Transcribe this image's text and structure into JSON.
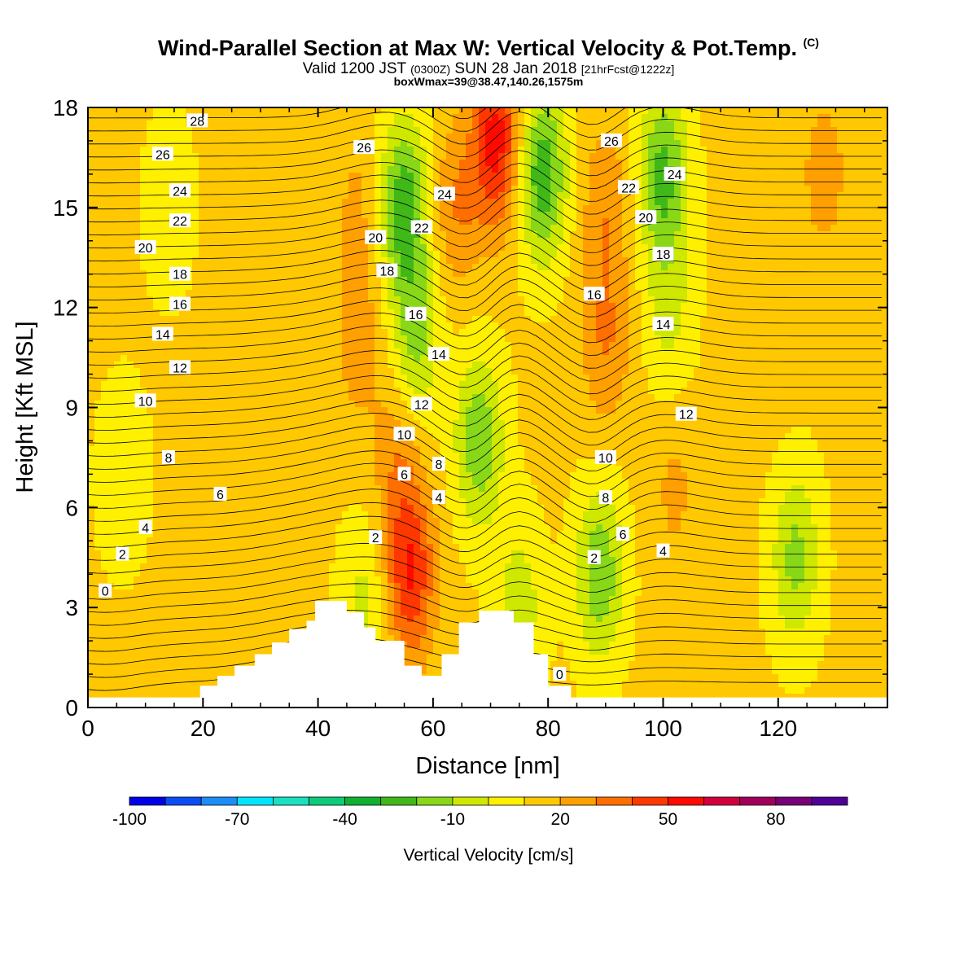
{
  "header": {
    "title": "Wind-Parallel Section at Max W: Vertical Velocity & Pot.Temp.",
    "copyright": "(C)",
    "subtitle_part1": "Valid 1200 JST",
    "subtitle_part2": "(0300Z)",
    "subtitle_part3": "SUN 28 Jan 2018",
    "subtitle_part4": "[21hrFcst@1222z]",
    "subtitle2": "boxWmax=39@38.47,140.26,1575m"
  },
  "chart_data": {
    "type": "heatmap",
    "xlabel": "Distance [nm]",
    "ylabel": "Height [Kft MSL]",
    "xlim": [
      0,
      139
    ],
    "ylim": [
      0,
      18
    ],
    "x_ticks": [
      0,
      20,
      40,
      60,
      80,
      100,
      120
    ],
    "y_ticks": [
      0,
      3,
      6,
      9,
      12,
      15,
      18
    ],
    "colorbar": {
      "label": "Vertical Velocity [cm/s]",
      "tick_labels": [
        "-100",
        "-70",
        "-40",
        "-10",
        "20",
        "50",
        "80"
      ],
      "tick_values": [
        -100,
        -70,
        -40,
        -10,
        20,
        50,
        80
      ],
      "range": [
        -100,
        100
      ],
      "colors": [
        "#0000e6",
        "#0a4cf5",
        "#1c8cf7",
        "#00e5ff",
        "#19e0c0",
        "#0ccc78",
        "#10b030",
        "#40b818",
        "#88d818",
        "#cfe800",
        "#fff000",
        "#ffc800",
        "#ffa000",
        "#ff6e00",
        "#ff3800",
        "#ff0a00",
        "#d2003c",
        "#a0005a",
        "#780078",
        "#500096"
      ]
    },
    "velocity_features": [
      {
        "sign": "down",
        "x": 55,
        "y": 15,
        "peak": -40
      },
      {
        "sign": "down",
        "x": 57,
        "y": 11,
        "peak": -25
      },
      {
        "sign": "down",
        "x": 68,
        "y": 8,
        "peak": -30
      },
      {
        "sign": "down",
        "x": 79,
        "y": 16,
        "peak": -40
      },
      {
        "sign": "down",
        "x": 100,
        "y": 16,
        "peak": -35
      },
      {
        "sign": "down",
        "x": 101,
        "y": 12,
        "peak": -15
      },
      {
        "sign": "down",
        "x": 89,
        "y": 4,
        "peak": -30
      },
      {
        "sign": "down",
        "x": 123,
        "y": 4.5,
        "peak": -25
      },
      {
        "sign": "down",
        "x": 75,
        "y": 3,
        "peak": -18
      },
      {
        "sign": "down",
        "x": 48,
        "y": 3,
        "peak": -15
      },
      {
        "sign": "down",
        "x": 6,
        "y": 7,
        "peak": -12
      },
      {
        "sign": "down",
        "x": 14,
        "y": 15,
        "peak": -10
      },
      {
        "sign": "up",
        "x": 56,
        "y": 4,
        "peak": 50
      },
      {
        "sign": "up",
        "x": 54,
        "y": 7.5,
        "peak": 28
      },
      {
        "sign": "up",
        "x": 47,
        "y": 11,
        "peak": 25
      },
      {
        "sign": "up",
        "x": 47,
        "y": 15,
        "peak": 22
      },
      {
        "sign": "up",
        "x": 71,
        "y": 17,
        "peak": 55
      },
      {
        "sign": "up",
        "x": 64,
        "y": 15,
        "peak": 30
      },
      {
        "sign": "up",
        "x": 90,
        "y": 11,
        "peak": 30
      },
      {
        "sign": "up",
        "x": 90,
        "y": 15,
        "peak": 28
      },
      {
        "sign": "up",
        "x": 102,
        "y": 6.5,
        "peak": 22
      },
      {
        "sign": "up",
        "x": 128,
        "y": 16,
        "peak": 25
      },
      {
        "sign": "up",
        "x": 118,
        "y": 10,
        "peak": 15
      },
      {
        "sign": "up",
        "x": 38,
        "y": 1.5,
        "peak": 12
      },
      {
        "sign": "up",
        "x": 20,
        "y": 2,
        "peak": 10
      }
    ],
    "contour_field": "Potential temperature",
    "contour_levels": [
      0,
      2,
      4,
      6,
      8,
      10,
      12,
      14,
      16,
      18,
      20,
      22,
      24,
      26,
      28
    ],
    "contour_labels": [
      {
        "text": "0",
        "x": 3,
        "y": 3.5
      },
      {
        "text": "2",
        "x": 6,
        "y": 4.6
      },
      {
        "text": "4",
        "x": 10,
        "y": 5.4
      },
      {
        "text": "6",
        "x": 23,
        "y": 6.4
      },
      {
        "text": "8",
        "x": 14,
        "y": 7.5
      },
      {
        "text": "10",
        "x": 10,
        "y": 9.2
      },
      {
        "text": "12",
        "x": 16,
        "y": 10.2
      },
      {
        "text": "14",
        "x": 13,
        "y": 11.2
      },
      {
        "text": "16",
        "x": 16,
        "y": 12.1
      },
      {
        "text": "18",
        "x": 16,
        "y": 13.0
      },
      {
        "text": "20",
        "x": 10,
        "y": 13.8
      },
      {
        "text": "22",
        "x": 16,
        "y": 14.6
      },
      {
        "text": "24",
        "x": 16,
        "y": 15.5
      },
      {
        "text": "26",
        "x": 13,
        "y": 16.6
      },
      {
        "text": "28",
        "x": 19,
        "y": 17.6
      },
      {
        "text": "26",
        "x": 48,
        "y": 16.8
      },
      {
        "text": "24",
        "x": 62,
        "y": 15.4
      },
      {
        "text": "22",
        "x": 58,
        "y": 14.4
      },
      {
        "text": "20",
        "x": 50,
        "y": 14.1
      },
      {
        "text": "18",
        "x": 52,
        "y": 13.1
      },
      {
        "text": "16",
        "x": 57,
        "y": 11.8
      },
      {
        "text": "14",
        "x": 61,
        "y": 10.6
      },
      {
        "text": "12",
        "x": 58,
        "y": 9.1
      },
      {
        "text": "10",
        "x": 55,
        "y": 8.2
      },
      {
        "text": "8",
        "x": 61,
        "y": 7.3
      },
      {
        "text": "6",
        "x": 55,
        "y": 7.0
      },
      {
        "text": "4",
        "x": 61,
        "y": 6.3
      },
      {
        "text": "2",
        "x": 50,
        "y": 5.1
      },
      {
        "text": "26",
        "x": 91,
        "y": 17.0
      },
      {
        "text": "24",
        "x": 102,
        "y": 16.0
      },
      {
        "text": "22",
        "x": 94,
        "y": 15.6
      },
      {
        "text": "20",
        "x": 97,
        "y": 14.7
      },
      {
        "text": "18",
        "x": 100,
        "y": 13.6
      },
      {
        "text": "16",
        "x": 88,
        "y": 12.4
      },
      {
        "text": "14",
        "x": 100,
        "y": 11.5
      },
      {
        "text": "12",
        "x": 104,
        "y": 8.8
      },
      {
        "text": "10",
        "x": 90,
        "y": 7.5
      },
      {
        "text": "8",
        "x": 90,
        "y": 6.3
      },
      {
        "text": "6",
        "x": 93,
        "y": 5.2
      },
      {
        "text": "4",
        "x": 100,
        "y": 4.7
      },
      {
        "text": "2",
        "x": 88,
        "y": 4.5
      },
      {
        "text": "0",
        "x": 82,
        "y": 1.0
      }
    ],
    "terrain": [
      [
        0,
        0.3
      ],
      [
        19.5,
        0.3
      ],
      [
        19.5,
        0.65
      ],
      [
        22.5,
        0.65
      ],
      [
        22.5,
        0.95
      ],
      [
        25.5,
        0.95
      ],
      [
        25.5,
        1.25
      ],
      [
        29,
        1.25
      ],
      [
        29,
        1.6
      ],
      [
        32,
        1.6
      ],
      [
        32,
        1.95
      ],
      [
        35,
        1.95
      ],
      [
        35,
        2.35
      ],
      [
        38,
        2.35
      ],
      [
        38,
        2.6
      ],
      [
        39.5,
        2.6
      ],
      [
        39.5,
        3.2
      ],
      [
        45,
        3.2
      ],
      [
        45,
        2.85
      ],
      [
        48,
        2.85
      ],
      [
        48,
        2.4
      ],
      [
        50,
        2.4
      ],
      [
        50,
        2.0
      ],
      [
        55,
        2.0
      ],
      [
        55,
        1.25
      ],
      [
        58,
        1.25
      ],
      [
        58,
        0.95
      ],
      [
        61.5,
        0.95
      ],
      [
        61.5,
        1.6
      ],
      [
        64.5,
        1.6
      ],
      [
        64.5,
        2.55
      ],
      [
        68,
        2.55
      ],
      [
        68,
        2.9
      ],
      [
        74,
        2.9
      ],
      [
        74,
        2.55
      ],
      [
        77.5,
        2.55
      ],
      [
        77.5,
        1.6
      ],
      [
        80,
        1.6
      ],
      [
        80,
        0.65
      ],
      [
        84,
        0.65
      ],
      [
        84,
        0.3
      ],
      [
        139,
        0.3
      ]
    ]
  }
}
